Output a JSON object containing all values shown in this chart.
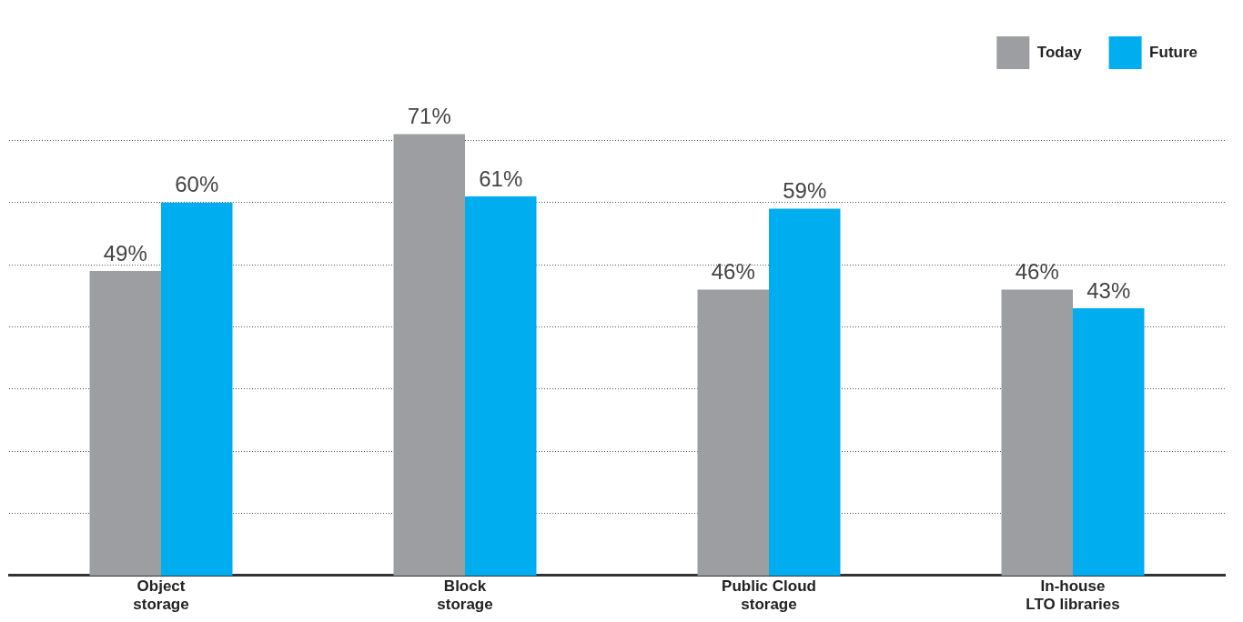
{
  "chart_data": {
    "type": "bar",
    "categories": [
      "Object\nstorage",
      "Block\nstorage",
      "Public Cloud\nstorage",
      "In-house\nLTO libraries"
    ],
    "series": [
      {
        "name": "Today",
        "color": "#9d9ea2",
        "values": [
          49,
          71,
          46,
          46
        ],
        "value_labels": [
          "49%",
          "71%",
          "46%",
          "46%"
        ]
      },
      {
        "name": "Future",
        "color": "#00aeef",
        "values": [
          60,
          61,
          59,
          43
        ],
        "value_labels": [
          "60%",
          "61%",
          "59%",
          "43%"
        ]
      }
    ],
    "yticks": [
      {
        "value": 10,
        "label": null
      },
      {
        "value": 20,
        "label": null
      },
      {
        "value": 30,
        "label": null
      },
      {
        "value": 40,
        "label": null
      },
      {
        "value": 50,
        "label": null
      },
      {
        "value": 60,
        "label": null
      },
      {
        "value": 70,
        "label": null
      }
    ],
    "grid": "y",
    "legend": "top right",
    "tick_labels": "x"
  }
}
